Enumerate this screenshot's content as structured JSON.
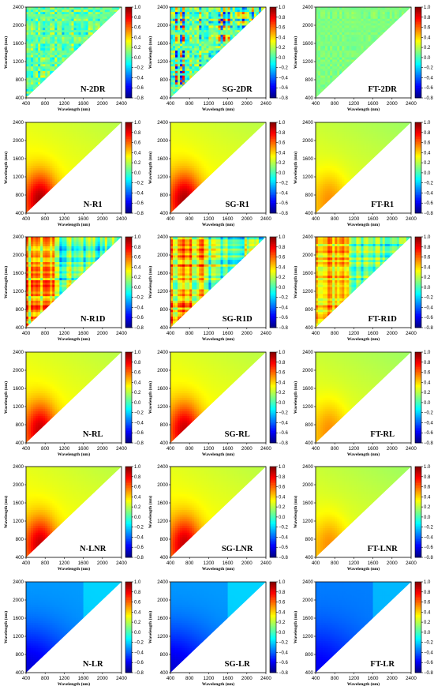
{
  "chart_data": {
    "type": "heatmap",
    "layout": {
      "rows": 6,
      "cols": 3
    },
    "xlabel": "Wavelength (nm)",
    "ylabel": "Wavelength (nm)",
    "xlim": [
      400,
      2400
    ],
    "ylim": [
      400,
      2400
    ],
    "x_ticks": [
      400,
      800,
      1200,
      1600,
      2000,
      2400
    ],
    "y_ticks": [
      400,
      800,
      1200,
      1600,
      2000,
      2400
    ],
    "colorbar": {
      "range": [
        -0.8,
        1.0
      ],
      "ticks": [
        "1.0",
        "0.8",
        "0.6",
        "0.4",
        "0.2",
        "0.0",
        "−0.2",
        "−0.4",
        "−0.6",
        "−0.8"
      ],
      "colormap": "jet"
    },
    "panels": [
      {
        "label": "N-2DR",
        "kind": "noisy",
        "noise": 0.25,
        "base": 0.05
      },
      {
        "label": "SG-2DR",
        "kind": "noisy",
        "noise": 0.5,
        "base": 0.05
      },
      {
        "label": "FT-2DR",
        "kind": "noisy",
        "noise": 0.06,
        "base": 0.1
      },
      {
        "label": "N-R1",
        "kind": "smooth",
        "base": 0.2,
        "peak": 0.75
      },
      {
        "label": "SG-R1",
        "kind": "smooth",
        "base": 0.2,
        "peak": 0.75
      },
      {
        "label": "FT-R1",
        "kind": "smooth",
        "base": 0.15,
        "peak": 0.35
      },
      {
        "label": "N-R1D",
        "kind": "band",
        "noise": 0.4
      },
      {
        "label": "SG-R1D",
        "kind": "band",
        "noise": 0.45
      },
      {
        "label": "FT-R1D",
        "kind": "band",
        "noise": 0.3
      },
      {
        "label": "N-RL",
        "kind": "smooth",
        "base": 0.2,
        "peak": 0.7
      },
      {
        "label": "SG-RL",
        "kind": "smooth",
        "base": 0.2,
        "peak": 0.7
      },
      {
        "label": "FT-RL",
        "kind": "smooth",
        "base": 0.15,
        "peak": 0.35
      },
      {
        "label": "N-LNR",
        "kind": "smooth",
        "base": 0.2,
        "peak": 0.7
      },
      {
        "label": "SG-LNR",
        "kind": "smooth",
        "base": 0.2,
        "peak": 0.7
      },
      {
        "label": "FT-LNR",
        "kind": "smooth",
        "base": 0.15,
        "peak": 0.35
      },
      {
        "label": "N-LR",
        "kind": "cold",
        "base": -0.3,
        "low": -0.65
      },
      {
        "label": "SG-LR",
        "kind": "cold",
        "base": -0.3,
        "low": -0.65
      },
      {
        "label": "FT-LR",
        "kind": "cold",
        "base": -0.35,
        "low": -0.6
      }
    ]
  }
}
